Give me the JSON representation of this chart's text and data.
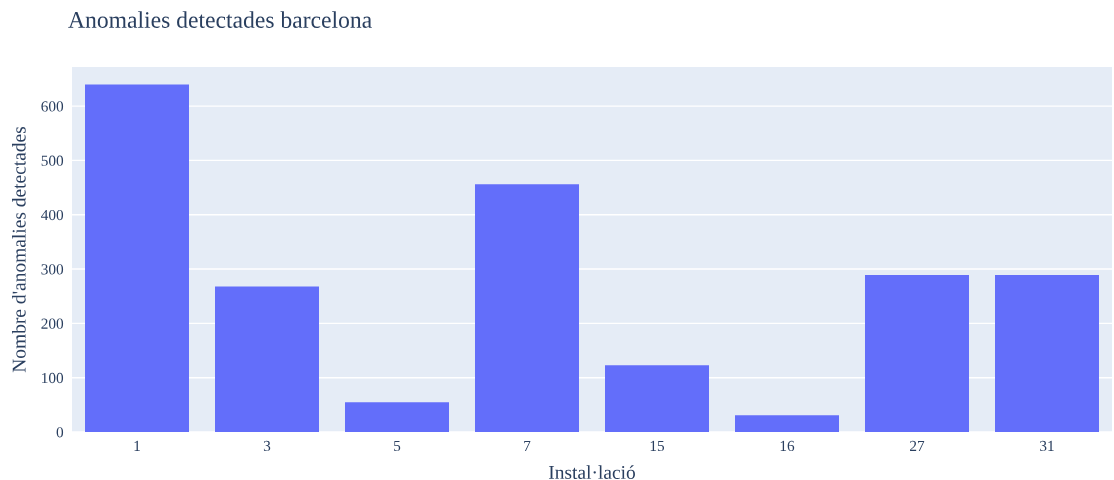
{
  "chart_data": {
    "type": "bar",
    "title": "Anomalies detectades barcelona",
    "xlabel": "Instal·lació",
    "ylabel": "Nombre d'anomalies detectades",
    "categories": [
      "1",
      "3",
      "5",
      "7",
      "15",
      "16",
      "27",
      "31"
    ],
    "values": [
      640,
      268,
      55,
      456,
      123,
      31,
      289,
      289
    ],
    "color": "#636efa",
    "ylim": [
      0,
      672
    ],
    "yticks": [
      0,
      100,
      200,
      300,
      400,
      500,
      600
    ],
    "grid": "y"
  }
}
